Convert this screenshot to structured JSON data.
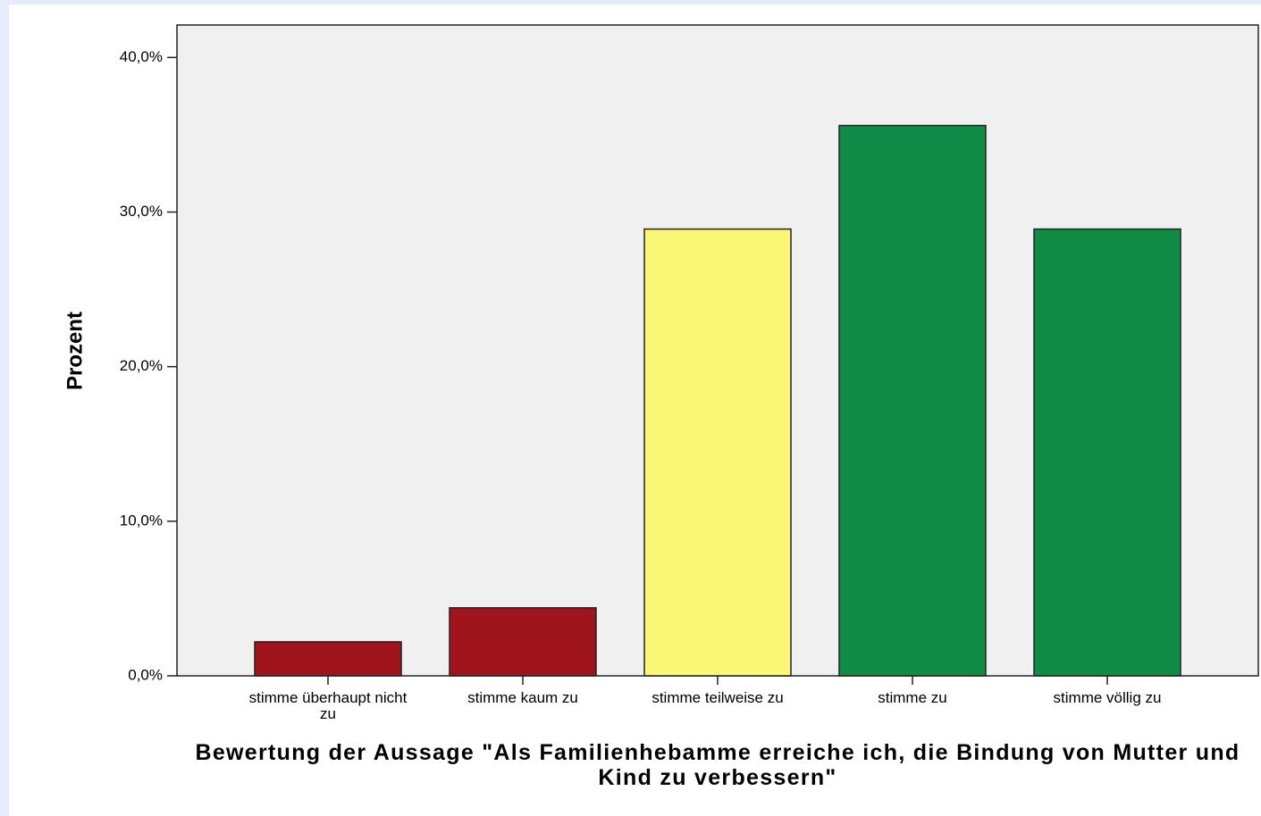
{
  "chart_data": {
    "type": "bar",
    "x_label": "Bewertung der Aussage \"Als Familienhebamme erreiche ich, die Bindung von Mutter und Kind zu verbessern\"",
    "y_label": "Prozent",
    "categories": [
      "stimme überhaupt nicht zu",
      "stimme kaum zu",
      "stimme teilweise zu",
      "stimme zu",
      "stimme völlig zu"
    ],
    "values": [
      2.2,
      4.4,
      28.9,
      35.6,
      28.9
    ],
    "colors": [
      "#a0151c",
      "#a0151c",
      "#fbf776",
      "#108c47",
      "#108c47"
    ],
    "ylim": [
      0,
      42.1
    ],
    "yticks": [
      {
        "value": 0,
        "label": "0,0%"
      },
      {
        "value": 10,
        "label": "10,0%"
      },
      {
        "value": 20,
        "label": "20,0%"
      },
      {
        "value": 30,
        "label": "30,0%"
      },
      {
        "value": 40,
        "label": "40,0%"
      }
    ]
  }
}
